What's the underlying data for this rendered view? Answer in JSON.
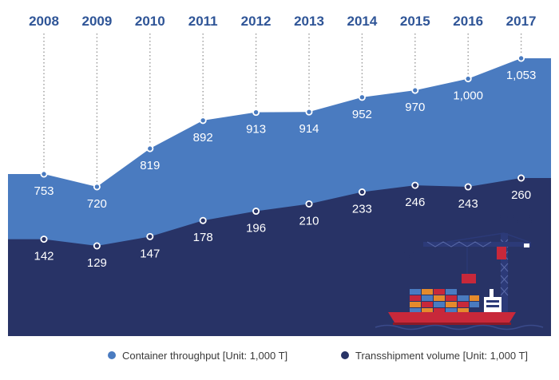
{
  "chart_data": {
    "type": "area",
    "categories": [
      "2008",
      "2009",
      "2010",
      "2011",
      "2012",
      "2013",
      "2014",
      "2015",
      "2016",
      "2017"
    ],
    "series": [
      {
        "name": "Container throughput [Unit: 1,000 T]",
        "color": "#4a7bc0",
        "values": [
          753,
          720,
          819,
          892,
          913,
          914,
          952,
          970,
          1000,
          1053
        ],
        "labels": [
          "753",
          "720",
          "819",
          "892",
          "913",
          "914",
          "952",
          "970",
          "1,000",
          "1,053"
        ]
      },
      {
        "name": "Transshipment volume [Unit: 1,000 T]",
        "color": "#283366",
        "values": [
          142,
          129,
          147,
          178,
          196,
          210,
          233,
          246,
          243,
          260
        ],
        "labels": [
          "142",
          "129",
          "147",
          "178",
          "196",
          "210",
          "233",
          "246",
          "243",
          "260"
        ]
      }
    ],
    "legend": [
      "Container throughput [Unit: 1,000 T]",
      "Transshipment volume [Unit: 1,000 T]"
    ],
    "legend_position": "bottom",
    "year_label_color": "#2f5597"
  },
  "illustration": {
    "name": "container-ship-and-crane",
    "colors": {
      "hull": "#c8283a",
      "crane": "#2c3a78",
      "water": "#1c2456"
    }
  }
}
